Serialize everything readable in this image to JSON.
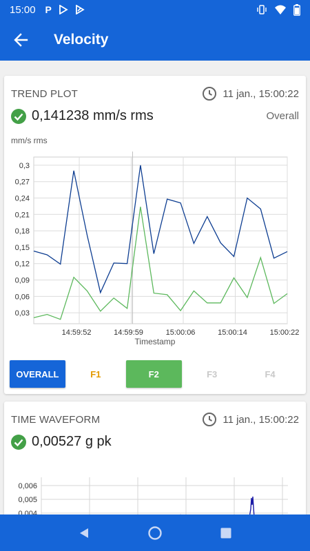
{
  "status_bar": {
    "time": "15:00",
    "left_icons": [
      "parking-icon",
      "play-store-icon",
      "play-store-alt-icon"
    ],
    "right_icons": [
      "vibrate-icon",
      "wifi-icon",
      "battery-icon"
    ]
  },
  "app_bar": {
    "title": "Velocity"
  },
  "trend_card": {
    "title": "TREND PLOT",
    "timestamp": "11 jan., 15:00:22",
    "value": "0,141238 mm/s rms",
    "aux_label": "Overall",
    "unit_label": "mm/s rms",
    "tabs": [
      {
        "label": "OVERALL",
        "state": "active"
      },
      {
        "label": "F1",
        "state": "enabled"
      },
      {
        "label": "F2",
        "state": "selected"
      },
      {
        "label": "F3",
        "state": "disabled"
      },
      {
        "label": "F4",
        "state": "disabled"
      }
    ]
  },
  "chart_data": {
    "type": "line",
    "xlabel": "Timestamp",
    "ylabel": "mm/s rms",
    "x_tick_labels": [
      "14:59:52",
      "14:59:59",
      "15:00:06",
      "15:00:14",
      "15:00:22"
    ],
    "y_tick_labels": [
      "0,03",
      "0,06",
      "0,09",
      "0,12",
      "0,15",
      "0,18",
      "0,21",
      "0,24",
      "0,27",
      "0,3"
    ],
    "ylim": [
      0.01,
      0.315
    ],
    "x": [
      0,
      1,
      2,
      3,
      4,
      5,
      6,
      7,
      8,
      9,
      10,
      11,
      12,
      13,
      14,
      15,
      16,
      17,
      18,
      19
    ],
    "grid": true,
    "colors": {
      "overall": "#0d3d91",
      "f2": "#5cb85c"
    },
    "series": [
      {
        "values": [
          0.143,
          0.136,
          0.119,
          0.29,
          0.172,
          0.067,
          0.121,
          0.12,
          0.3,
          0.138,
          0.238,
          0.231,
          0.157,
          0.206,
          0.158,
          0.133,
          0.24,
          0.22,
          0.13,
          0.142
        ]
      },
      {
        "values": [
          0.021,
          0.027,
          0.018,
          0.095,
          0.07,
          0.033,
          0.057,
          0.038,
          0.224,
          0.066,
          0.063,
          0.034,
          0.07,
          0.048,
          0.048,
          0.094,
          0.058,
          0.131,
          0.047,
          0.065
        ]
      }
    ]
  },
  "wave_card": {
    "title": "TIME WAVEFORM",
    "timestamp": "11 jan., 15:00:22",
    "value": "0,00527 g pk",
    "chart_data": {
      "type": "line",
      "y_tick_labels": [
        "0,006",
        "0,005",
        "0,004"
      ],
      "colors": {
        "signal": "#1a1aa6"
      }
    }
  }
}
